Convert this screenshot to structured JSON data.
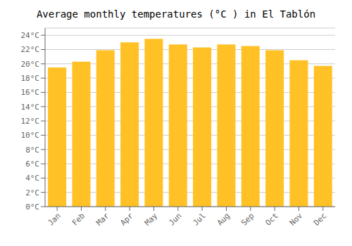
{
  "chart_data": {
    "type": "bar",
    "title": "Average monthly temperatures (°C ) in El Tablón",
    "categories": [
      "Jan",
      "Feb",
      "Mar",
      "Apr",
      "May",
      "Jun",
      "Jul",
      "Aug",
      "Sep",
      "Oct",
      "Nov",
      "Dec"
    ],
    "values": [
      19.5,
      20.3,
      21.9,
      23.0,
      23.5,
      22.7,
      22.3,
      22.7,
      22.5,
      21.9,
      20.5,
      19.7
    ],
    "color": "#FFC125",
    "ylim": [
      0,
      25
    ],
    "yticks": [
      {
        "value": 0,
        "label": "0°C"
      },
      {
        "value": 2,
        "label": "2°C"
      },
      {
        "value": 4,
        "label": "4°C"
      },
      {
        "value": 6,
        "label": "6°C"
      },
      {
        "value": 8,
        "label": "8°C"
      },
      {
        "value": 10,
        "label": "10°C"
      },
      {
        "value": 12,
        "label": "12°C"
      },
      {
        "value": 14,
        "label": "14°C"
      },
      {
        "value": 16,
        "label": "16°C"
      },
      {
        "value": 18,
        "label": "18°C"
      },
      {
        "value": 20,
        "label": "20°C"
      },
      {
        "value": 22,
        "label": "22°C"
      },
      {
        "value": 24,
        "label": "24°C"
      }
    ],
    "grid": true
  }
}
